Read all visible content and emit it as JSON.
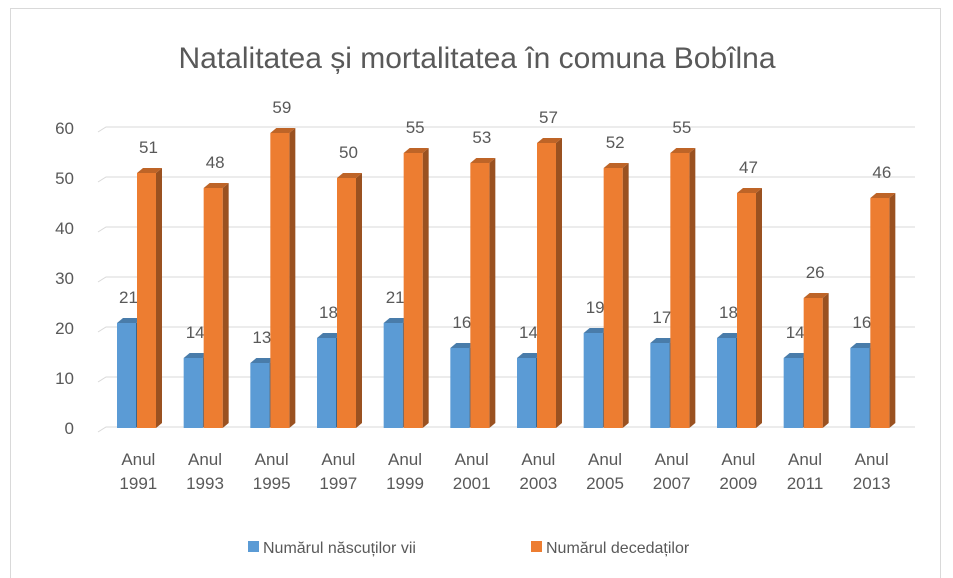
{
  "chart_data": {
    "type": "bar3d",
    "title": "Natalitatea și mortalitatea în comuna  Bobîlna",
    "categories": [
      "Anul 1991",
      "Anul 1993",
      "Anul 1995",
      "Anul 1997",
      "Anul 1999",
      "Anul 2001",
      "Anul 2003",
      "Anul 2005",
      "Anul 2007",
      "Anul 2009",
      "Anul 2011",
      "Anul 2013"
    ],
    "series": [
      {
        "name": "Numărul născuților vii",
        "color": "#5b9bd5",
        "values": [
          21,
          14,
          13,
          18,
          21,
          16,
          14,
          19,
          17,
          18,
          14,
          16
        ]
      },
      {
        "name": "Numărul decedaților",
        "color": "#ed7d31",
        "values": [
          51,
          48,
          59,
          50,
          55,
          53,
          57,
          52,
          55,
          47,
          26,
          46
        ]
      }
    ],
    "ylim": [
      0,
      60
    ],
    "yticks": [
      0,
      10,
      20,
      30,
      40,
      50,
      60
    ],
    "grid": true,
    "legend": "bottom"
  }
}
